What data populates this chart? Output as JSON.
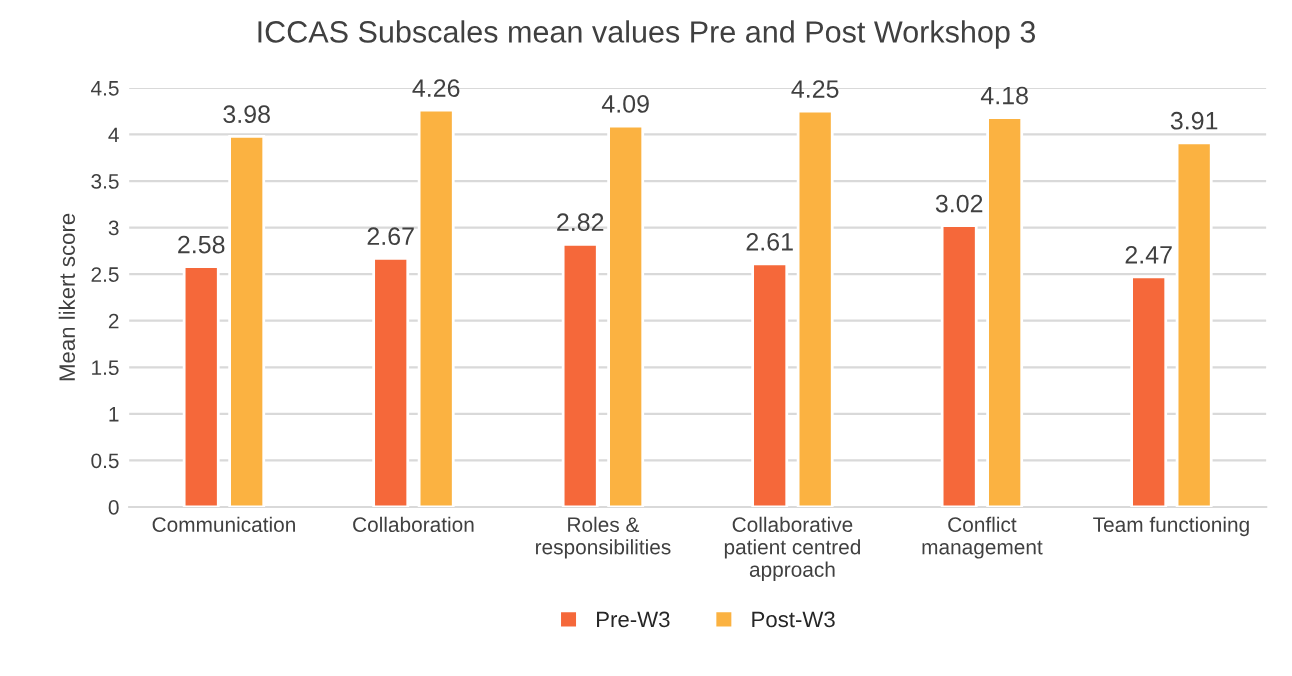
{
  "chart_data": {
    "type": "bar",
    "title": "ICCAS Subscales mean values Pre and Post Workshop 3",
    "ylabel": "Mean likert score",
    "categories": [
      "Communication",
      "Collaboration",
      "Roles &\nresponsibilities",
      "Collaborative\npatient centred\napproach",
      "Conflict\nmanagement",
      "Team functioning"
    ],
    "series": [
      {
        "name": "Pre-W3",
        "color": "#f5683a",
        "values": [
          2.58,
          2.67,
          2.82,
          2.61,
          3.02,
          2.47
        ]
      },
      {
        "name": "Post-W3",
        "color": "#fbb241",
        "values": [
          3.98,
          4.26,
          4.09,
          4.25,
          4.18,
          3.91
        ]
      }
    ],
    "ylim": [
      0,
      4.5
    ],
    "yticks": [
      0,
      0.5,
      1,
      1.5,
      2,
      2.5,
      3,
      3.5,
      4,
      4.5
    ],
    "grid": "y",
    "legend": "bottom",
    "data_labels": true
  }
}
